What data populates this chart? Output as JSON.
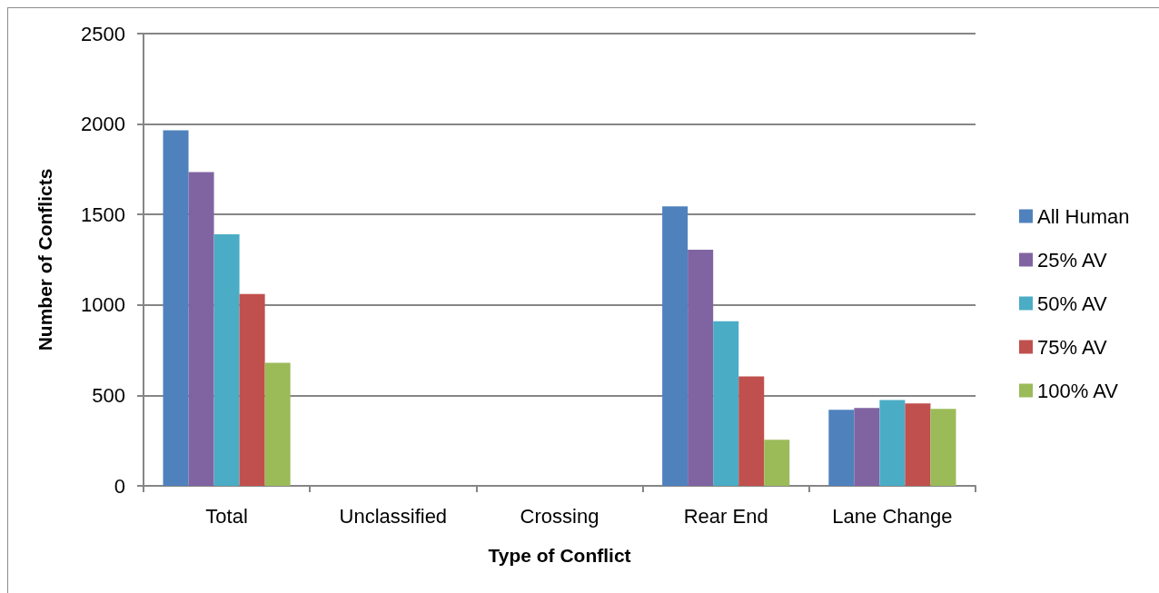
{
  "chart_data": {
    "type": "bar",
    "xlabel": "Type of Conflict",
    "ylabel": "Number of Conflicts",
    "categories": [
      "Total",
      "Unclassified",
      "Crossing",
      "Rear End",
      "Lane Change"
    ],
    "series": [
      {
        "name": "All Human",
        "color": "#4f81bd",
        "values": [
          1965,
          0,
          0,
          1545,
          420
        ]
      },
      {
        "name": "25% AV",
        "color": "#8064a2",
        "values": [
          1735,
          0,
          0,
          1305,
          430
        ]
      },
      {
        "name": "50% AV",
        "color": "#4bacc6",
        "values": [
          1390,
          0,
          0,
          910,
          475
        ]
      },
      {
        "name": "75% AV",
        "color": "#c0504d",
        "values": [
          1060,
          0,
          0,
          605,
          455
        ]
      },
      {
        "name": "100% AV",
        "color": "#9bbb59",
        "values": [
          680,
          0,
          0,
          255,
          425
        ]
      }
    ],
    "ylim": [
      0,
      2500
    ],
    "yticks": [
      0,
      500,
      1000,
      1500,
      2000,
      2500
    ],
    "grid": "y",
    "legend": "right"
  }
}
